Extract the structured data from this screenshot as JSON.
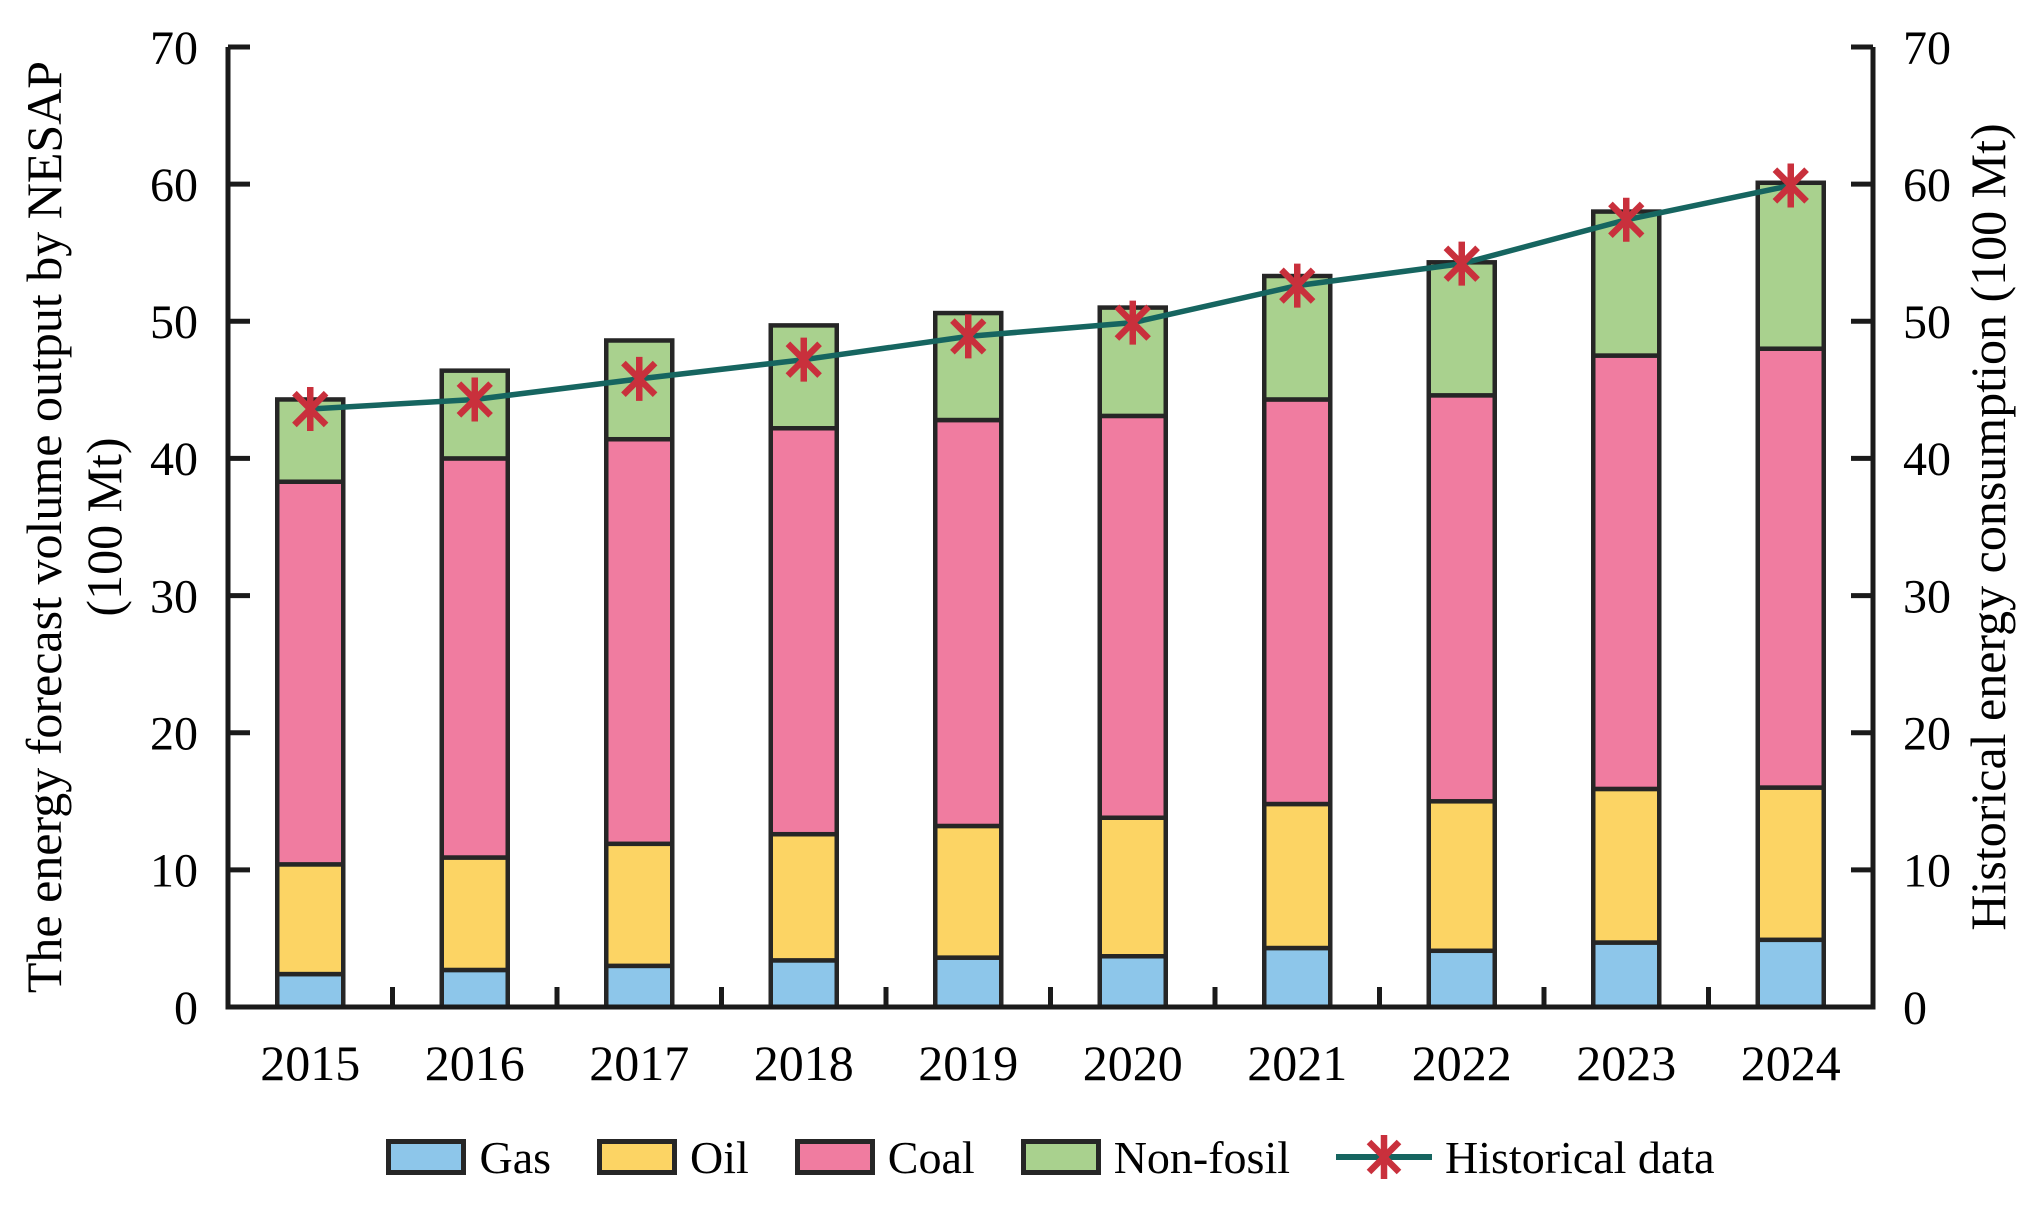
{
  "chart_data": {
    "type": "bar",
    "subtype": "stacked-bars-with-line-overlay",
    "categories": [
      "2015",
      "2016",
      "2017",
      "2018",
      "2019",
      "2020",
      "2021",
      "2022",
      "2023",
      "2024"
    ],
    "series": [
      {
        "name": "Gas",
        "render": "bar",
        "color": "#8DC6EA",
        "values": [
          2.4,
          2.7,
          3.0,
          3.4,
          3.6,
          3.7,
          4.3,
          4.1,
          4.7,
          4.9
        ]
      },
      {
        "name": "Oil",
        "render": "bar",
        "color": "#FCD464",
        "values": [
          8.0,
          8.2,
          8.9,
          9.2,
          9.6,
          10.1,
          10.5,
          10.9,
          11.2,
          11.1
        ]
      },
      {
        "name": "Coal",
        "render": "bar",
        "color": "#F07CA0",
        "values": [
          27.9,
          29.1,
          29.5,
          29.6,
          29.6,
          29.3,
          29.5,
          29.6,
          31.6,
          32.0
        ]
      },
      {
        "name": "Non-fosil",
        "render": "bar",
        "color": "#A9D18E",
        "values": [
          6.0,
          6.4,
          7.2,
          7.5,
          7.8,
          7.9,
          9.0,
          9.7,
          10.5,
          12.1
        ]
      },
      {
        "name": "Historical data",
        "render": "line",
        "color": "#166560",
        "marker": "asterisk",
        "marker_color": "#C9303C",
        "values": [
          43.6,
          44.3,
          45.8,
          47.2,
          48.9,
          49.9,
          52.6,
          54.2,
          57.4,
          59.9
        ]
      }
    ],
    "stacked_totals": [
      44.3,
      46.4,
      48.6,
      49.7,
      50.6,
      51.0,
      53.3,
      54.3,
      58.0,
      60.1
    ],
    "title": "",
    "xlabel": "",
    "ylabel_left": "The energy forecast volume output by NESAP (100 Mt)",
    "ylabel_right": "Historical energy consumption (100 Mt)",
    "ylim": [
      0,
      70
    ],
    "y_ticks": [
      0,
      10,
      20,
      30,
      40,
      50,
      60,
      70
    ],
    "grid": false,
    "legend_position": "bottom"
  },
  "axes": {
    "left": {
      "title_line1": "The energy forecast volume output by NESAP",
      "title_line2": "(100 Mt)",
      "tick_labels": [
        "0",
        "10",
        "20",
        "30",
        "40",
        "50",
        "60",
        "70"
      ]
    },
    "right": {
      "title": "Historical energy consumption (100 Mt)",
      "tick_labels": [
        "0",
        "10",
        "20",
        "30",
        "40",
        "50",
        "60",
        "70"
      ]
    },
    "bottom": {
      "tick_labels": [
        "2015",
        "2016",
        "2017",
        "2018",
        "2019",
        "2020",
        "2021",
        "2022",
        "2023",
        "2024"
      ]
    }
  },
  "legend": {
    "items": [
      {
        "label": "Gas",
        "glyph": "swatch",
        "color": "#8DC6EA"
      },
      {
        "label": "Oil",
        "glyph": "swatch",
        "color": "#FCD464"
      },
      {
        "label": "Coal",
        "glyph": "swatch",
        "color": "#F07CA0"
      },
      {
        "label": "Non-fosil",
        "glyph": "swatch",
        "color": "#A9D18E"
      },
      {
        "label": "Historical data",
        "glyph": "line-asterisk",
        "color": "#166560",
        "marker_color": "#C9303C"
      }
    ]
  },
  "colors": {
    "axis": "#1a1a1a",
    "bar_border": "#262626",
    "text": "#000000",
    "background": "#ffffff"
  }
}
